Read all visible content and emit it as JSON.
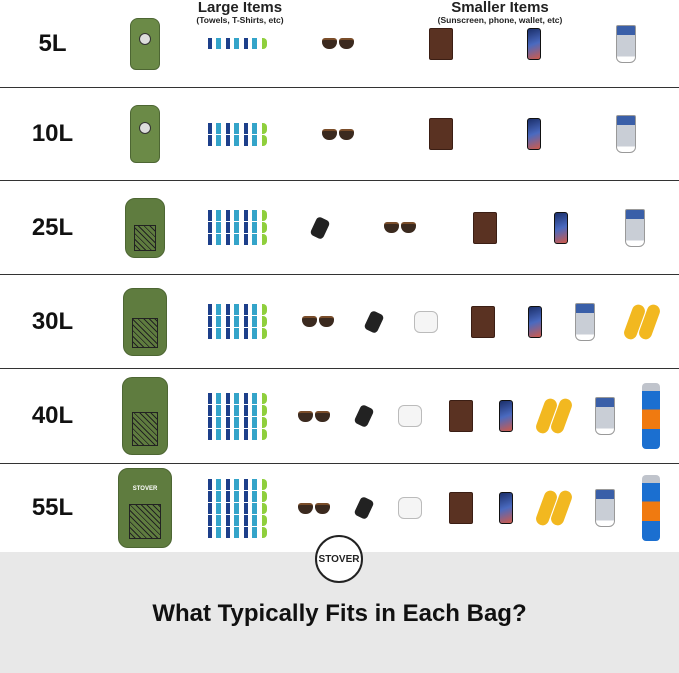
{
  "header": {
    "large_title": "Large Items",
    "large_sub": "(Towels, T-Shirts, etc)",
    "small_title": "Smaller Items",
    "small_sub": "(Sunscreen, phone, wallet, etc)"
  },
  "rows": [
    {
      "size": "5L",
      "bag": "dry-bag",
      "towels": 1,
      "items": [
        "sunglasses",
        "wallet",
        "phone",
        "sunscreen"
      ]
    },
    {
      "size": "10L",
      "bag": "dry-bag",
      "towels": 2,
      "items": [
        "sunglasses",
        "wallet",
        "phone",
        "sunscreen"
      ]
    },
    {
      "size": "25L",
      "bag": "backpack",
      "towels": 3,
      "items": [
        "keys",
        "sunglasses",
        "wallet",
        "phone",
        "sunscreen"
      ]
    },
    {
      "size": "30L",
      "bag": "backpack",
      "towels": 3,
      "items": [
        "sunglasses",
        "keys",
        "airpods",
        "wallet",
        "phone",
        "sunscreen",
        "flip-flops"
      ]
    },
    {
      "size": "40L",
      "bag": "backpack",
      "towels": 4,
      "items": [
        "sunglasses",
        "keys",
        "airpods",
        "wallet",
        "phone",
        "flip-flops",
        "sunscreen",
        "sunscreen-spray"
      ]
    },
    {
      "size": "55L",
      "bag": "backpack",
      "bag_brand": "STOVER",
      "towels": 5,
      "items": [
        "sunglasses",
        "keys",
        "airpods",
        "wallet",
        "phone",
        "flip-flops",
        "sunscreen",
        "sunscreen-spray"
      ]
    }
  ],
  "footer": {
    "logo": "STOVER",
    "title": "What Typically Fits in Each Bag?"
  },
  "colors": {
    "bag": "#6b8a47",
    "footer_bg": "#e8e8e8"
  }
}
